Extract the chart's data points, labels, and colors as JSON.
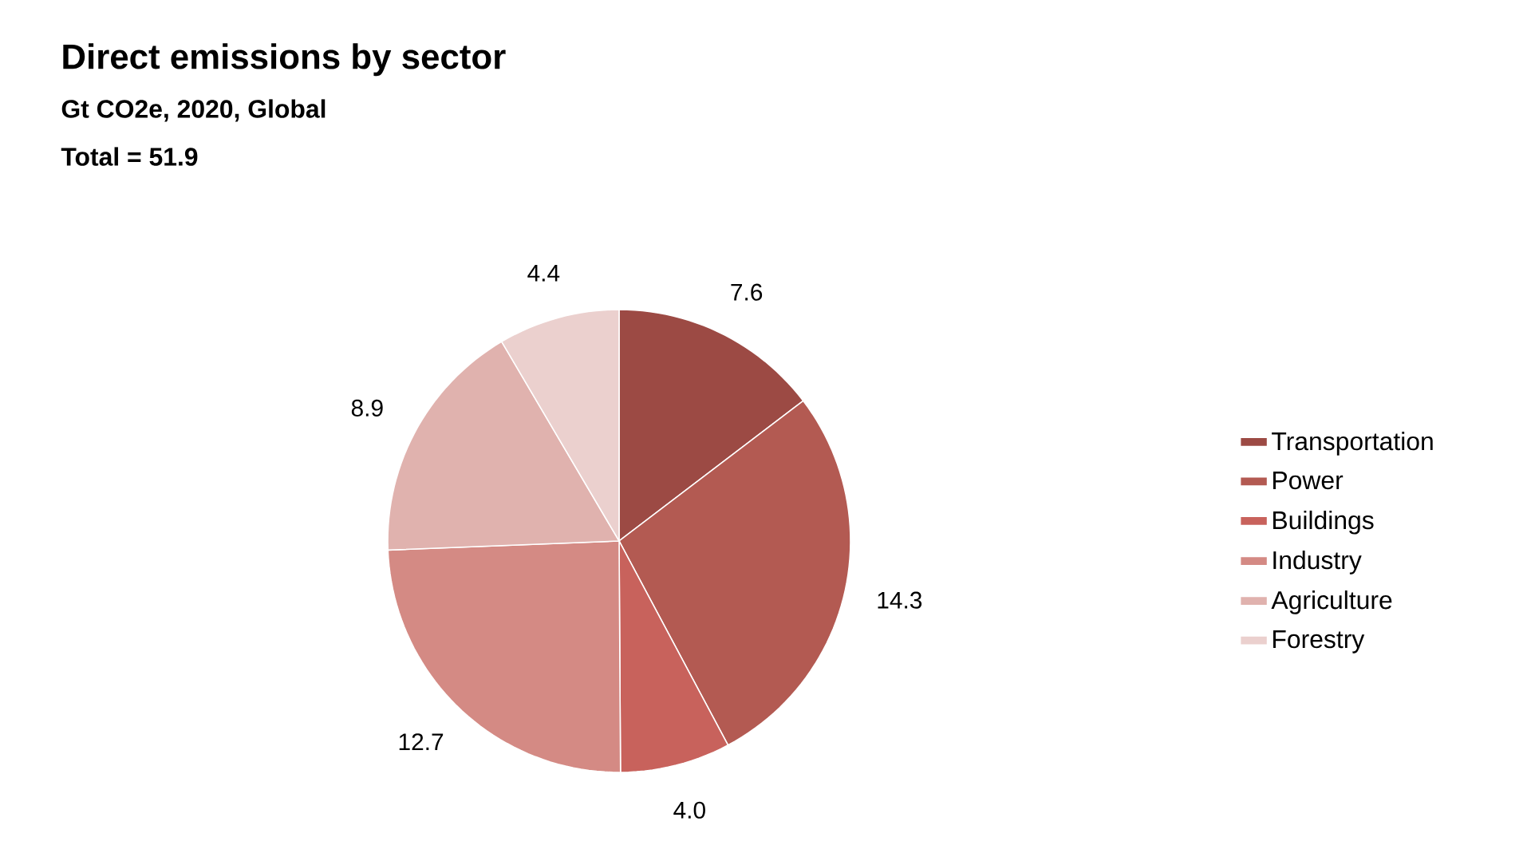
{
  "chart_data": {
    "type": "pie",
    "title": "Direct emissions by sector",
    "subtitle": "Gt CO2e, 2020, Global",
    "annotations": [
      "Total = 51.9"
    ],
    "categories": [
      "Transportation",
      "Power",
      "Buildings",
      "Industry",
      "Agriculture",
      "Forestry"
    ],
    "values": [
      7.6,
      14.3,
      4.0,
      12.7,
      8.9,
      4.4
    ],
    "colors": [
      "#9c4a44",
      "#b35a52",
      "#c8625c",
      "#d48a84",
      "#e0b2ae",
      "#ebd0ce"
    ],
    "value_labels": [
      "7.6",
      "14.3",
      "4.0",
      "12.7",
      "8.9",
      "4.4"
    ],
    "legend": "right"
  }
}
